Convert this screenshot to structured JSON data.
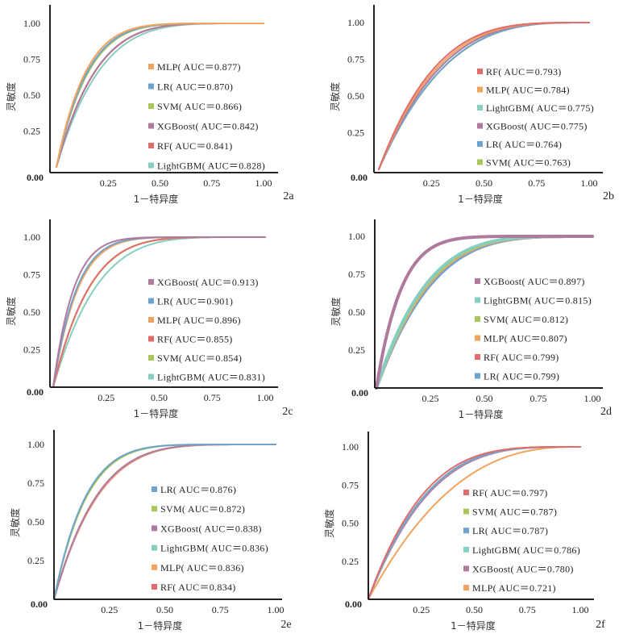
{
  "chart_data": [
    {
      "type": "line",
      "panel_label": "2a",
      "xlabel": "1－特异度",
      "ylabel": "灵敏度",
      "xlim": [
        0,
        1
      ],
      "ylim": [
        0,
        1
      ],
      "xticks": [
        "0.25",
        "0.50",
        "0.75",
        "1.00"
      ],
      "yticks": [
        "0.00",
        "0.25",
        "0.50",
        "0.75",
        "1.00"
      ],
      "legend_position": "center-right",
      "series": [
        {
          "name": "MLP",
          "auc": 0.877,
          "label": "MLP( AUC＝0.877)",
          "color": "#F2A35E"
        },
        {
          "name": "LR",
          "auc": 0.87,
          "label": "LR( AUC＝0.870)",
          "color": "#6FA3CF"
        },
        {
          "name": "SVM",
          "auc": 0.866,
          "label": "SVM( AUC＝0.866)",
          "color": "#A9C65A"
        },
        {
          "name": "XGBoost",
          "auc": 0.842,
          "label": "XGBoost( AUC＝0.842)",
          "color": "#B07A9E"
        },
        {
          "name": "RF",
          "auc": 0.841,
          "label": "RF( AUC＝0.841)",
          "color": "#E36B6B"
        },
        {
          "name": "LightGBM",
          "auc": 0.828,
          "label": "LightGBM( AUC＝0.828)",
          "color": "#86CFC0"
        }
      ]
    },
    {
      "type": "line",
      "panel_label": "2b",
      "xlabel": "1－特异度",
      "ylabel": "灵敏度",
      "xlim": [
        0,
        1
      ],
      "ylim": [
        0,
        1
      ],
      "xticks": [
        "0.25",
        "0.50",
        "0.75",
        "1.00"
      ],
      "yticks": [
        "0.00",
        "0.25",
        "0.50",
        "0.75",
        "1.00"
      ],
      "legend_position": "center-right",
      "series": [
        {
          "name": "RF",
          "auc": 0.793,
          "label": "RF( AUC＝0.793)",
          "color": "#E36B6B"
        },
        {
          "name": "MLP",
          "auc": 0.784,
          "label": "MLP( AUC＝0.784)",
          "color": "#F2A35E"
        },
        {
          "name": "LightGBM",
          "auc": 0.775,
          "label": "LightGBM( AUC＝0.775)",
          "color": "#86CFC0"
        },
        {
          "name": "XGBoost",
          "auc": 0.775,
          "label": "XGBoost( AUC＝0.775)",
          "color": "#B07A9E"
        },
        {
          "name": "LR",
          "auc": 0.764,
          "label": "LR( AUC＝0.764)",
          "color": "#6FA3CF"
        },
        {
          "name": "SVM",
          "auc": 0.763,
          "label": "SVM( AUC＝0.763)",
          "color": "#A9C65A"
        }
      ]
    },
    {
      "type": "line",
      "panel_label": "2c",
      "xlabel": "1－特异度",
      "ylabel": "灵敏度",
      "xlim": [
        0,
        1
      ],
      "ylim": [
        0,
        1
      ],
      "xticks": [
        "0.25",
        "0.50",
        "0.75",
        "1.00"
      ],
      "yticks": [
        "0.00",
        "0.25",
        "0.50",
        "0.75",
        "1.00"
      ],
      "legend_position": "center-right",
      "series": [
        {
          "name": "XGBoost",
          "auc": 0.913,
          "label": "XGBoost( AUC＝0.913)",
          "color": "#B07A9E"
        },
        {
          "name": "LR",
          "auc": 0.901,
          "label": "LR( AUC＝0.901)",
          "color": "#6FA3CF"
        },
        {
          "name": "MLP",
          "auc": 0.896,
          "label": "MLP( AUC＝0.896)",
          "color": "#F2A35E"
        },
        {
          "name": "RF",
          "auc": 0.855,
          "label": "RF( AUC＝0.855)",
          "color": "#E36B6B"
        },
        {
          "name": "SVM",
          "auc": 0.854,
          "label": "SVM( AUC＝0.854)",
          "color": "#A9C65A"
        },
        {
          "name": "LightGBM",
          "auc": 0.831,
          "label": "LightGBM( AUC＝0.831)",
          "color": "#86CFC0"
        }
      ]
    },
    {
      "type": "line",
      "panel_label": "2d",
      "xlabel": "1－特异度",
      "ylabel": "灵敏度",
      "xlim": [
        0,
        1
      ],
      "ylim": [
        0,
        1
      ],
      "xticks": [
        "0.25",
        "0.50",
        "0.75",
        "1.00"
      ],
      "yticks": [
        "0.00",
        "0.25",
        "0.50",
        "0.75",
        "1.00"
      ],
      "legend_position": "center-right",
      "series": [
        {
          "name": "XGBoost",
          "auc": 0.897,
          "label": "XGBoost( AUC＝0.897)",
          "color": "#B07A9E"
        },
        {
          "name": "LightGBM",
          "auc": 0.815,
          "label": "LightGBM( AUC＝0.815)",
          "color": "#86CFC0"
        },
        {
          "name": "SVM",
          "auc": 0.812,
          "label": "SVM( AUC＝0.812)",
          "color": "#A9C65A"
        },
        {
          "name": "MLP",
          "auc": 0.807,
          "label": "MLP( AUC＝0.807)",
          "color": "#F2A35E"
        },
        {
          "name": "RF",
          "auc": 0.799,
          "label": "RF( AUC＝0.799)",
          "color": "#E36B6B"
        },
        {
          "name": "LR",
          "auc": 0.799,
          "label": "LR( AUC＝0.799)",
          "color": "#6FA3CF"
        }
      ]
    },
    {
      "type": "line",
      "panel_label": "2e",
      "xlabel": "1－特异度",
      "ylabel": "灵敏度",
      "xlim": [
        0,
        1
      ],
      "ylim": [
        0,
        1
      ],
      "xticks": [
        "0.25",
        "0.50",
        "0.75",
        "1.00"
      ],
      "yticks": [
        "0.00",
        "0.25",
        "0.50",
        "0.75",
        "1.00"
      ],
      "legend_position": "center-right",
      "series": [
        {
          "name": "LR",
          "auc": 0.876,
          "label": "LR( AUC＝0.876)",
          "color": "#6FA3CF"
        },
        {
          "name": "SVM",
          "auc": 0.872,
          "label": "SVM( AUC＝0.872)",
          "color": "#A9C65A"
        },
        {
          "name": "XGBoost",
          "auc": 0.838,
          "label": "XGBoost( AUC＝0.838)",
          "color": "#B07A9E"
        },
        {
          "name": "LightGBM",
          "auc": 0.836,
          "label": "LightGBM( AUC＝0.836)",
          "color": "#86CFC0"
        },
        {
          "name": "MLP",
          "auc": 0.836,
          "label": "MLP( AUC＝0.836)",
          "color": "#F2A35E"
        },
        {
          "name": "RF",
          "auc": 0.834,
          "label": "RF( AUC＝0.834)",
          "color": "#E36B6B"
        }
      ]
    },
    {
      "type": "line",
      "panel_label": "2f",
      "xlabel": "1－特异度",
      "ylabel": "灵敏度",
      "xlim": [
        0,
        1
      ],
      "ylim": [
        0,
        1
      ],
      "xticks": [
        "0.25",
        "0.50",
        "0.75",
        "1.00"
      ],
      "yticks": [
        "0.00",
        "0.25",
        "0.50",
        "0.75",
        "1.00"
      ],
      "legend_position": "center-right",
      "series": [
        {
          "name": "RF",
          "auc": 0.797,
          "label": "RF( AUC＝0.797)",
          "color": "#E36B6B"
        },
        {
          "name": "SVM",
          "auc": 0.787,
          "label": "SVM( AUC＝0.787)",
          "color": "#A9C65A"
        },
        {
          "name": "LR",
          "auc": 0.787,
          "label": "LR( AUC＝0.787)",
          "color": "#6FA3CF"
        },
        {
          "name": "LightGBM",
          "auc": 0.786,
          "label": "LightGBM( AUC＝0.786)",
          "color": "#86CFC0"
        },
        {
          "name": "XGBoost",
          "auc": 0.78,
          "label": "XGBoost( AUC＝0.780)",
          "color": "#B07A9E"
        },
        {
          "name": "MLP",
          "auc": 0.721,
          "label": "MLP( AUC＝0.721)",
          "color": "#F2A35E"
        }
      ]
    }
  ]
}
